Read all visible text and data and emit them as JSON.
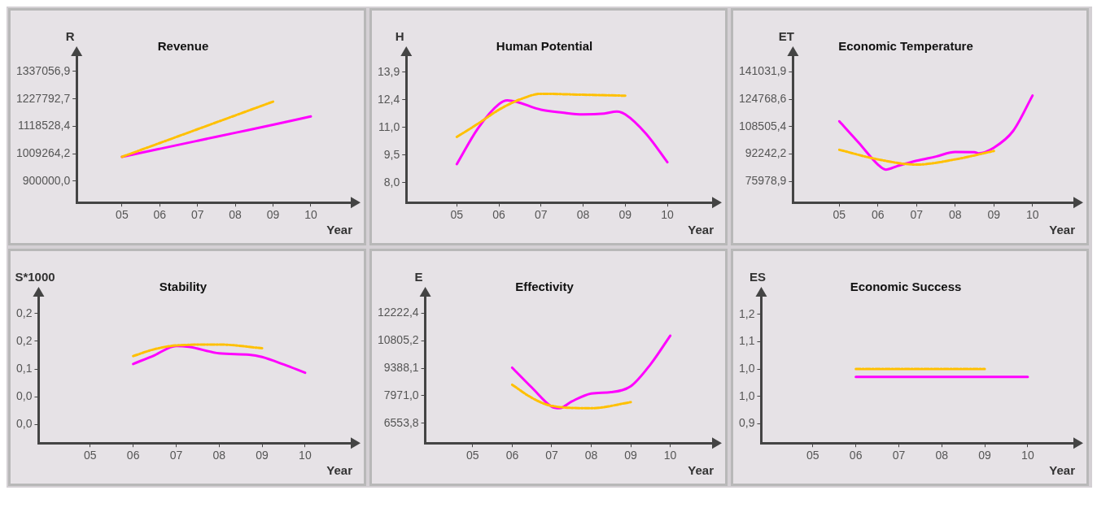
{
  "chart_data": [
    {
      "type": "line",
      "title": "Revenue",
      "xlabel": "Year",
      "ylabel": "R",
      "xlim": [
        3.8,
        11.1
      ],
      "xticks": [
        {
          "value": 5,
          "label": "05"
        },
        {
          "value": 6,
          "label": "06"
        },
        {
          "value": 7,
          "label": "07"
        },
        {
          "value": 8,
          "label": "08"
        },
        {
          "value": 9,
          "label": "09"
        },
        {
          "value": 10,
          "label": "10"
        }
      ],
      "ylim": [
        815000,
        1405000
      ],
      "yticks": [
        {
          "value": 900000,
          "label": "900000,0"
        },
        {
          "value": 1009264.2,
          "label": "1009264,2"
        },
        {
          "value": 1118528.4,
          "label": "1118528,4"
        },
        {
          "value": 1227792.7,
          "label": "1227792,7"
        },
        {
          "value": 1337056.9,
          "label": "1337056,9"
        }
      ],
      "series": [
        {
          "color": "#ff00ff",
          "line_style": "solid",
          "x": [
            5,
            6,
            7,
            8,
            9,
            10
          ],
          "values": [
            997000,
            1029000,
            1061000,
            1093000,
            1125000,
            1158000
          ]
        },
        {
          "color": "#ffc000",
          "line_style": "dashed",
          "x": [
            5,
            6,
            7,
            8,
            9
          ],
          "values": [
            997000,
            1052000,
            1107000,
            1162000,
            1217000
          ]
        }
      ]
    },
    {
      "type": "line",
      "title": "Human Potential",
      "xlabel": "Year",
      "ylabel": "H",
      "xlim": [
        3.8,
        11.1
      ],
      "xticks": [
        {
          "value": 5,
          "label": "05"
        },
        {
          "value": 6,
          "label": "06"
        },
        {
          "value": 7,
          "label": "07"
        },
        {
          "value": 8,
          "label": "08"
        },
        {
          "value": 9,
          "label": "09"
        },
        {
          "value": 10,
          "label": "10"
        }
      ],
      "ylim": [
        6.95,
        14.85
      ],
      "yticks": [
        {
          "value": 8,
          "label": "8,0"
        },
        {
          "value": 9.475,
          "label": "9,5"
        },
        {
          "value": 10.95,
          "label": "11,0"
        },
        {
          "value": 12.425,
          "label": "12,4"
        },
        {
          "value": 13.9,
          "label": "13,9"
        }
      ],
      "series": [
        {
          "color": "#ff00ff",
          "line_style": "solid",
          "x": [
            5,
            5.5,
            6,
            6.2,
            7,
            7.5,
            8,
            8.5,
            8.8,
            9,
            9.5,
            10
          ],
          "values": [
            9.0,
            10.9,
            12.2,
            12.4,
            11.9,
            11.75,
            11.65,
            11.7,
            11.8,
            11.65,
            10.6,
            9.1
          ]
        },
        {
          "color": "#ffc000",
          "line_style": "dashed",
          "x": [
            5,
            5.5,
            6,
            6.5,
            7,
            8,
            9
          ],
          "values": [
            10.45,
            11.15,
            11.9,
            12.45,
            12.75,
            12.7,
            12.65
          ]
        }
      ]
    },
    {
      "type": "line",
      "title": "Economic Temperature",
      "xlabel": "Year",
      "ylabel": "ET",
      "xlim": [
        3.8,
        11.1
      ],
      "xticks": [
        {
          "value": 5,
          "label": "05"
        },
        {
          "value": 6,
          "label": "06"
        },
        {
          "value": 7,
          "label": "07"
        },
        {
          "value": 8,
          "label": "08"
        },
        {
          "value": 9,
          "label": "09"
        },
        {
          "value": 10,
          "label": "10"
        }
      ],
      "ylim": [
        63300,
        151500
      ],
      "yticks": [
        {
          "value": 75978.9,
          "label": "75978,9"
        },
        {
          "value": 92242.2,
          "label": "92242,2"
        },
        {
          "value": 108505.4,
          "label": "108505,4"
        },
        {
          "value": 124768.6,
          "label": "124768,6"
        },
        {
          "value": 141031.9,
          "label": "141031,9"
        }
      ],
      "series": [
        {
          "color": "#ff00ff",
          "line_style": "solid",
          "x": [
            5,
            5.5,
            6,
            6.2,
            6.5,
            7,
            7.5,
            8,
            8.5,
            8.6,
            9,
            9.5,
            10
          ],
          "values": [
            111700,
            99000,
            85900,
            82900,
            85000,
            88200,
            90700,
            93400,
            93300,
            92600,
            96000,
            106000,
            127000
          ]
        },
        {
          "color": "#ffc000",
          "line_style": "dashed",
          "x": [
            5,
            6,
            7,
            8,
            9
          ],
          "values": [
            94700,
            89000,
            85900,
            89000,
            94000
          ]
        }
      ]
    },
    {
      "type": "line",
      "title": "Stability",
      "xlabel": "Year",
      "ylabel": "S*1000",
      "xlim": [
        3.8,
        11.1
      ],
      "xticks": [
        {
          "value": 5,
          "label": "05"
        },
        {
          "value": 6,
          "label": "06"
        },
        {
          "value": 7,
          "label": "07"
        },
        {
          "value": 8,
          "label": "08"
        },
        {
          "value": 9,
          "label": "09"
        },
        {
          "value": 10,
          "label": "10"
        }
      ],
      "ylim": [
        -0.06,
        0.26
      ],
      "yticks": [
        {
          "value": -0.02,
          "label": "0,0"
        },
        {
          "value": 0.04,
          "label": "0,0"
        },
        {
          "value": 0.1,
          "label": "0,1"
        },
        {
          "value": 0.16,
          "label": "0,2"
        },
        {
          "value": 0.22,
          "label": "0,2"
        }
      ],
      "series": [
        {
          "color": "#ff00ff",
          "line_style": "solid",
          "x": [
            6,
            6.5,
            7,
            7.3,
            8,
            8.7,
            9,
            9.5,
            10
          ],
          "values": [
            0.111,
            0.13,
            0.15,
            0.148,
            0.134,
            0.131,
            0.126,
            0.11,
            0.092
          ]
        },
        {
          "color": "#ffc000",
          "line_style": "dashed",
          "x": [
            6,
            6.5,
            7,
            8,
            9
          ],
          "values": [
            0.128,
            0.143,
            0.151,
            0.153,
            0.145
          ]
        }
      ]
    },
    {
      "type": "line",
      "title": "Effectivity",
      "xlabel": "Year",
      "ylabel": "E",
      "xlim": [
        3.8,
        11.1
      ],
      "xticks": [
        {
          "value": 5,
          "label": "05"
        },
        {
          "value": 6,
          "label": "06"
        },
        {
          "value": 7,
          "label": "07"
        },
        {
          "value": 8,
          "label": "08"
        },
        {
          "value": 9,
          "label": "09"
        },
        {
          "value": 10,
          "label": "10"
        }
      ],
      "ylim": [
        5530,
        13170
      ],
      "yticks": [
        {
          "value": 6553.8,
          "label": "6553,8"
        },
        {
          "value": 7971,
          "label": "7971,0"
        },
        {
          "value": 9388.1,
          "label": "9388,1"
        },
        {
          "value": 10805.2,
          "label": "10805,2"
        },
        {
          "value": 12222.4,
          "label": "12222,4"
        }
      ],
      "series": [
        {
          "color": "#ff00ff",
          "line_style": "solid",
          "x": [
            6,
            6.5,
            7,
            7.2,
            7.5,
            8,
            8.5,
            9,
            9.5,
            10
          ],
          "values": [
            9420,
            8390,
            7410,
            7330,
            7670,
            8090,
            8160,
            8460,
            9590,
            11070
          ]
        },
        {
          "color": "#ffc000",
          "line_style": "dashed",
          "x": [
            6,
            6.5,
            7,
            8,
            9
          ],
          "values": [
            8540,
            7860,
            7450,
            7330,
            7640
          ]
        }
      ]
    },
    {
      "type": "line",
      "title": "Economic Success",
      "xlabel": "Year",
      "ylabel": "ES",
      "xlim": [
        3.8,
        11.1
      ],
      "xticks": [
        {
          "value": 5,
          "label": "05"
        },
        {
          "value": 6,
          "label": "06"
        },
        {
          "value": 7,
          "label": "07"
        },
        {
          "value": 8,
          "label": "08"
        },
        {
          "value": 9,
          "label": "09"
        },
        {
          "value": 10,
          "label": "10"
        }
      ],
      "ylim": [
        0.85,
        1.23
      ],
      "yticks": [
        {
          "value": 0.9,
          "label": "0,9"
        },
        {
          "value": 0.97,
          "label": "1,0"
        },
        {
          "value": 1.04,
          "label": "1,0"
        },
        {
          "value": 1.11,
          "label": "1,1"
        },
        {
          "value": 1.18,
          "label": "1,2"
        }
      ],
      "series": [
        {
          "color": "#ff00ff",
          "line_style": "solid",
          "x": [
            6,
            7,
            8,
            9,
            10
          ],
          "values": [
            1.02,
            1.02,
            1.02,
            1.02,
            1.02
          ]
        },
        {
          "color": "#ffc000",
          "line_style": "dashed",
          "x": [
            6,
            7,
            8,
            9
          ],
          "values": [
            1.04,
            1.04,
            1.04,
            1.04
          ]
        }
      ]
    }
  ]
}
